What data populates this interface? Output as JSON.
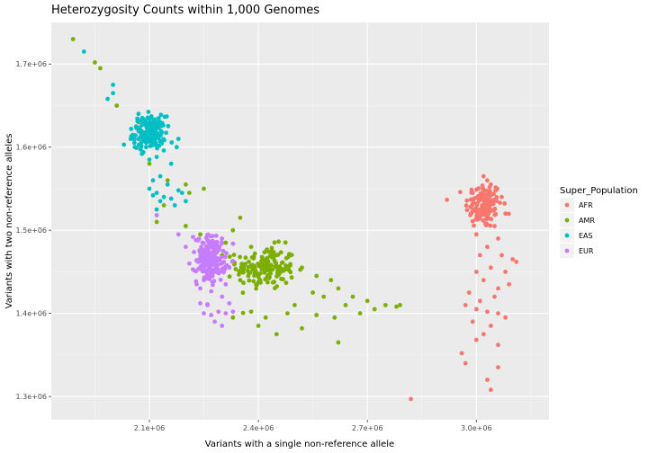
{
  "chart_data": {
    "type": "scatter",
    "title": "Heterozygosity Counts within 1,000 Genomes",
    "xlabel": "Variants with a single non-reference allele",
    "ylabel": "Variants with two non-reference alleles",
    "xlim": [
      1830000,
      3200000
    ],
    "ylim": [
      1272000,
      1750000
    ],
    "x_ticks": [
      2100000,
      2400000,
      2700000,
      3000000
    ],
    "x_tick_labels": [
      "2.1e+06",
      "2.4e+06",
      "2.7e+06",
      "3.0e+06"
    ],
    "y_ticks": [
      1300000,
      1400000,
      1500000,
      1600000,
      1700000
    ],
    "y_tick_labels": [
      "1.3e+06",
      "1.4e+06",
      "1.5e+06",
      "1.6e+06",
      "1.7e+06"
    ],
    "grid": true,
    "legend": {
      "title": "Super_Population",
      "position": "right"
    },
    "series": [
      {
        "name": "AFR",
        "color": "#F8766D",
        "cluster": {
          "center": [
            3020000,
            1530000
          ],
          "spread": [
            25000,
            14000
          ],
          "count": 130
        },
        "points": [
          [
            3020000,
            1565000
          ],
          [
            3030000,
            1560000
          ],
          [
            3040000,
            1555000
          ],
          [
            2990000,
            1545000
          ],
          [
            3070000,
            1540000
          ],
          [
            3080000,
            1520000
          ],
          [
            3005000,
            1515000
          ],
          [
            3050000,
            1505000
          ],
          [
            3000000,
            1495000
          ],
          [
            3060000,
            1490000
          ],
          [
            3030000,
            1480000
          ],
          [
            3070000,
            1470000
          ],
          [
            3010000,
            1470000
          ],
          [
            3100000,
            1465000
          ],
          [
            3110000,
            1462000
          ],
          [
            3040000,
            1455000
          ],
          [
            3080000,
            1450000
          ],
          [
            3000000,
            1450000
          ],
          [
            3020000,
            1440000
          ],
          [
            3090000,
            1435000
          ],
          [
            3060000,
            1430000
          ],
          [
            2980000,
            1425000
          ],
          [
            3050000,
            1420000
          ],
          [
            3010000,
            1415000
          ],
          [
            2970000,
            1410000
          ],
          [
            3000000,
            1405000
          ],
          [
            3030000,
            1402000
          ],
          [
            3060000,
            1400000
          ],
          [
            3080000,
            1395000
          ],
          [
            2990000,
            1390000
          ],
          [
            3040000,
            1385000
          ],
          [
            3020000,
            1375000
          ],
          [
            3000000,
            1368000
          ],
          [
            3060000,
            1362000
          ],
          [
            2960000,
            1352000
          ],
          [
            2970000,
            1340000
          ],
          [
            3060000,
            1335000
          ],
          [
            3030000,
            1320000
          ],
          [
            3040000,
            1308000
          ],
          [
            2820000,
            1297000
          ]
        ]
      },
      {
        "name": "AMR",
        "color": "#7CAE00",
        "cluster": {
          "center": [
            2420000,
            1455000
          ],
          "spread": [
            40000,
            13000
          ],
          "count": 160
        },
        "points": [
          [
            1890000,
            1730000
          ],
          [
            1950000,
            1702000
          ],
          [
            1965000,
            1695000
          ],
          [
            2010000,
            1650000
          ],
          [
            2070000,
            1630000
          ],
          [
            2110000,
            1605000
          ],
          [
            2100000,
            1580000
          ],
          [
            2150000,
            1560000
          ],
          [
            2200000,
            1555000
          ],
          [
            2210000,
            1545000
          ],
          [
            2250000,
            1550000
          ],
          [
            2140000,
            1530000
          ],
          [
            2120000,
            1510000
          ],
          [
            2200000,
            1505000
          ],
          [
            2330000,
            1500000
          ],
          [
            2350000,
            1515000
          ],
          [
            2240000,
            1495000
          ],
          [
            2310000,
            1485000
          ],
          [
            2380000,
            1480000
          ],
          [
            2450000,
            1470000
          ],
          [
            2520000,
            1455000
          ],
          [
            2560000,
            1445000
          ],
          [
            2600000,
            1440000
          ],
          [
            2620000,
            1430000
          ],
          [
            2660000,
            1420000
          ],
          [
            2700000,
            1415000
          ],
          [
            2580000,
            1420000
          ],
          [
            2550000,
            1425000
          ],
          [
            2640000,
            1410000
          ],
          [
            2680000,
            1400000
          ],
          [
            2720000,
            1405000
          ],
          [
            2750000,
            1410000
          ],
          [
            2610000,
            1395000
          ],
          [
            2500000,
            1410000
          ],
          [
            2480000,
            1400000
          ],
          [
            2420000,
            1395000
          ],
          [
            2400000,
            1385000
          ],
          [
            2450000,
            1375000
          ],
          [
            2520000,
            1382000
          ],
          [
            2380000,
            1402000
          ],
          [
            2330000,
            1395000
          ],
          [
            2560000,
            1398000
          ],
          [
            2790000,
            1410000
          ],
          [
            2780000,
            1408000
          ],
          [
            2620000,
            1365000
          ],
          [
            2350000,
            1440000
          ],
          [
            2300000,
            1470000
          ]
        ]
      },
      {
        "name": "EAS",
        "color": "#00BFC4",
        "cluster": {
          "center": [
            2100000,
            1617000
          ],
          "spread": [
            22000,
            10000
          ],
          "count": 170
        },
        "points": [
          [
            1920000,
            1715000
          ],
          [
            2000000,
            1675000
          ],
          [
            2000000,
            1665000
          ],
          [
            1985000,
            1658000
          ],
          [
            2050000,
            1622000
          ],
          [
            2030000,
            1603000
          ],
          [
            2180000,
            1610000
          ],
          [
            2175000,
            1600000
          ],
          [
            2100000,
            1585000
          ],
          [
            2160000,
            1580000
          ],
          [
            2110000,
            1560000
          ],
          [
            2130000,
            1565000
          ],
          [
            2150000,
            1555000
          ],
          [
            2180000,
            1548000
          ],
          [
            2120000,
            1545000
          ],
          [
            2140000,
            1540000
          ],
          [
            2160000,
            1538000
          ],
          [
            2110000,
            1542000
          ],
          [
            2100000,
            1550000
          ],
          [
            2170000,
            1530000
          ],
          [
            2190000,
            1545000
          ],
          [
            2200000,
            1535000
          ],
          [
            2130000,
            1535000
          ],
          [
            2120000,
            1525000
          ],
          [
            2060000,
            1600000
          ],
          [
            2070000,
            1640000
          ]
        ]
      },
      {
        "name": "EUR",
        "color": "#C77CFF",
        "cluster": {
          "center": [
            2270000,
            1465000
          ],
          "spread": [
            20000,
            14000
          ],
          "count": 190
        },
        "points": [
          [
            2120000,
            1518000
          ],
          [
            2180000,
            1495000
          ],
          [
            2200000,
            1480000
          ],
          [
            2220000,
            1492000
          ],
          [
            2260000,
            1488000
          ],
          [
            2280000,
            1480000
          ],
          [
            2300000,
            1490000
          ],
          [
            2210000,
            1460000
          ],
          [
            2320000,
            1455000
          ],
          [
            2310000,
            1435000
          ],
          [
            2300000,
            1420000
          ],
          [
            2320000,
            1412000
          ],
          [
            2290000,
            1402000
          ],
          [
            2260000,
            1410000
          ],
          [
            2240000,
            1412000
          ],
          [
            2270000,
            1398000
          ],
          [
            2280000,
            1390000
          ],
          [
            2250000,
            1400000
          ],
          [
            2310000,
            1400000
          ],
          [
            2300000,
            1385000
          ],
          [
            2330000,
            1402000
          ],
          [
            2240000,
            1430000
          ],
          [
            2250000,
            1440000
          ],
          [
            2230000,
            1435000
          ]
        ]
      }
    ]
  }
}
